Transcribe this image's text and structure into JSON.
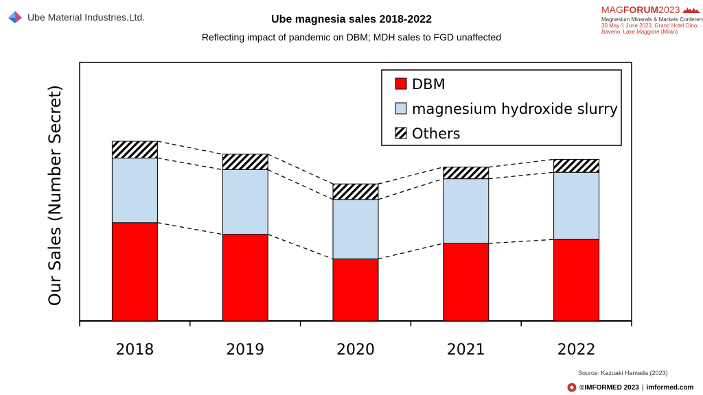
{
  "company": {
    "name": "Ube Material Industries.Ltd."
  },
  "conference": {
    "name_part1": "MAG",
    "name_part2": "FORUM",
    "year": "2023",
    "line1": "Magnesium Minerals & Markets Conference",
    "line2": "30 May-1 June 2023, Grand Hotel Dino, Baveno, Lake Maggiore (Milan)"
  },
  "source": "Source: Kazuaki Hamada (2023)",
  "footer": {
    "brand": "©IMFORMED 2023",
    "separator": "|",
    "site": "imformed.com"
  },
  "chart_data": {
    "type": "bar",
    "stacked": true,
    "title": "Ube magnesia sales 2018-2022",
    "subtitle": "Reflecting impact of pandemic  on DBM; MDH sales to FGD unaffected",
    "ylabel": "Our Sales (Number Secret)",
    "xlabel": "",
    "categories": [
      "2018",
      "2019",
      "2020",
      "2021",
      "2022"
    ],
    "series": [
      {
        "name": "DBM",
        "color": "#ff0000",
        "pattern": "solid",
        "values": [
          38,
          33.5,
          24,
          30,
          31.5
        ]
      },
      {
        "name": "magnesium hydroxide slurry",
        "color": "#c5dbef",
        "pattern": "solid",
        "values": [
          25,
          25,
          23,
          25,
          26
        ]
      },
      {
        "name": "Others",
        "color": "#000000",
        "pattern": "hatched",
        "values": [
          6.5,
          6,
          6,
          4.5,
          5
        ]
      }
    ],
    "ylim": [
      0,
      100
    ],
    "legend_position": "top-right",
    "connector_lines": "dashed"
  }
}
